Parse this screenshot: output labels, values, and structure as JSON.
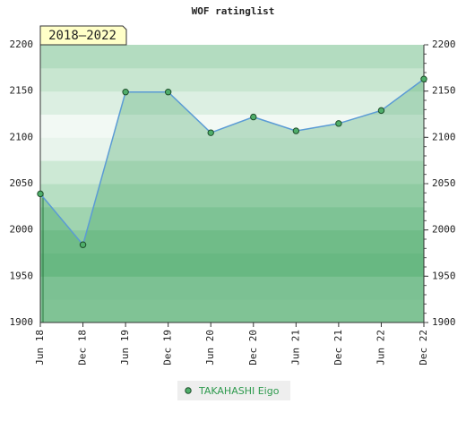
{
  "chart_data": {
    "type": "line",
    "title": "WOF ratinglist",
    "period": "2018–2022",
    "categories": [
      "Jun 18",
      "Dec 18",
      "Jun 19",
      "Dec 19",
      "Jun 20",
      "Dec 20",
      "Jun 21",
      "Dec 21",
      "Jun 22",
      "Dec 22"
    ],
    "series": [
      {
        "name": "TAKAHASHI Eigo",
        "color": "#5b9bd5",
        "values": [
          2039,
          1984,
          2149,
          2149,
          2105,
          2122,
          2107,
          2115,
          2129,
          2163
        ]
      }
    ],
    "ylim": [
      1900,
      2200
    ],
    "yticks": [
      1900,
      1950,
      2000,
      2050,
      2100,
      2150,
      2200
    ]
  }
}
